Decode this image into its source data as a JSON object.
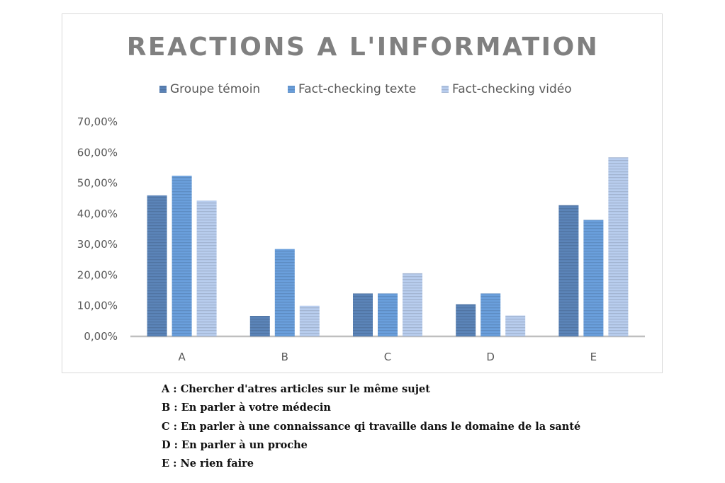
{
  "chart_data": {
    "type": "bar",
    "title": "REACTIONS A L'INFORMATION",
    "categories": [
      "A",
      "B",
      "C",
      "D",
      "E"
    ],
    "series": [
      {
        "name": "Groupe témoin",
        "values": [
          46.0,
          6.7,
          14.0,
          10.5,
          42.8
        ]
      },
      {
        "name": "Fact-checking texte",
        "values": [
          52.4,
          28.5,
          14.0,
          14.0,
          38.0
        ]
      },
      {
        "name": "Fact-checking vidéo",
        "values": [
          44.3,
          10.0,
          20.6,
          6.8,
          58.4
        ]
      }
    ],
    "xlabel": "",
    "ylabel": "",
    "ylim": [
      0,
      70
    ],
    "yticks": [
      "0,00%",
      "10,00%",
      "20,00%",
      "30,00%",
      "40,00%",
      "50,00%",
      "60,00%",
      "70,00%"
    ],
    "legend_position": "top",
    "grid": false,
    "colors": [
      "#5b84b8",
      "#6a9fdc",
      "#b8cdee"
    ],
    "bar_pattern": "horizontal-stripes"
  },
  "notes": [
    "A : Chercher d'atres articles sur le même sujet",
    "B : En parler à votre médecin",
    "C : En parler à une connaissance qi travaille dans le domaine de la santé",
    "D : En parler à un proche",
    "E : Ne rien faire"
  ]
}
